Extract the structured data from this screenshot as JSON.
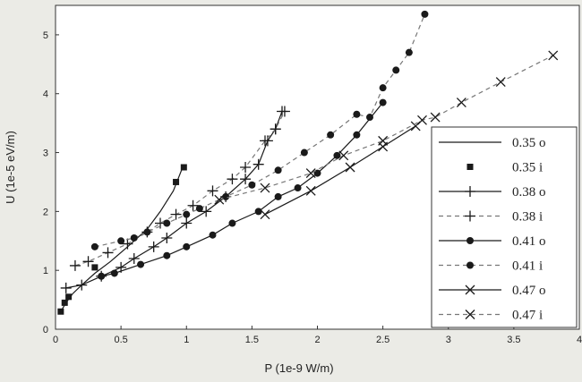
{
  "chart_data": {
    "type": "scatter",
    "title": "",
    "xlabel": "P (1e-9 W/m)",
    "ylabel": "U (1e-5 eV/m)",
    "xlim": [
      0,
      4
    ],
    "ylim": [
      0,
      5.5
    ],
    "x_ticks": [
      "0",
      "0.5",
      "1",
      "1.5",
      "2",
      "2.5",
      "3",
      "3.5",
      "4"
    ],
    "y_ticks": [
      "0",
      "1",
      "2",
      "3",
      "4",
      "5"
    ],
    "grid": false,
    "legend_position": "right",
    "series": [
      {
        "name": "0.35 o",
        "line": "solid",
        "marker": "none",
        "points": [
          [
            0.04,
            0.3
          ],
          [
            0.08,
            0.45
          ],
          [
            0.13,
            0.6
          ],
          [
            0.2,
            0.75
          ],
          [
            0.3,
            0.95
          ],
          [
            0.42,
            1.15
          ],
          [
            0.55,
            1.4
          ],
          [
            0.7,
            1.7
          ],
          [
            0.8,
            2.0
          ],
          [
            0.9,
            2.35
          ],
          [
            0.98,
            2.8
          ]
        ]
      },
      {
        "name": "0.35 i",
        "line": "none",
        "marker": "square",
        "points": [
          [
            0.04,
            0.3
          ],
          [
            0.07,
            0.45
          ],
          [
            0.1,
            0.55
          ],
          [
            0.3,
            1.05
          ],
          [
            0.92,
            2.5
          ],
          [
            0.98,
            2.75
          ]
        ]
      },
      {
        "name": "0.38 o",
        "line": "solid",
        "marker": "plus",
        "points": [
          [
            0.08,
            0.7
          ],
          [
            0.2,
            0.75
          ],
          [
            0.35,
            0.9
          ],
          [
            0.5,
            1.05
          ],
          [
            0.6,
            1.2
          ],
          [
            0.75,
            1.4
          ],
          [
            0.85,
            1.55
          ],
          [
            1.0,
            1.8
          ],
          [
            1.15,
            2.0
          ],
          [
            1.3,
            2.25
          ],
          [
            1.45,
            2.55
          ],
          [
            1.55,
            2.8
          ],
          [
            1.62,
            3.2
          ],
          [
            1.68,
            3.4
          ],
          [
            1.73,
            3.7
          ]
        ]
      },
      {
        "name": "0.38 i",
        "line": "dashed",
        "marker": "plus",
        "points": [
          [
            0.15,
            1.08
          ],
          [
            0.25,
            1.15
          ],
          [
            0.4,
            1.3
          ],
          [
            0.55,
            1.45
          ],
          [
            0.7,
            1.65
          ],
          [
            0.8,
            1.8
          ],
          [
            0.92,
            1.95
          ],
          [
            1.05,
            2.1
          ],
          [
            1.2,
            2.35
          ],
          [
            1.35,
            2.55
          ],
          [
            1.45,
            2.75
          ],
          [
            1.6,
            3.2
          ],
          [
            1.68,
            3.4
          ],
          [
            1.75,
            3.7
          ]
        ]
      },
      {
        "name": "0.41 o",
        "line": "solid",
        "marker": "circle",
        "points": [
          [
            0.35,
            0.9
          ],
          [
            0.45,
            0.95
          ],
          [
            0.65,
            1.1
          ],
          [
            0.85,
            1.25
          ],
          [
            1.0,
            1.4
          ],
          [
            1.2,
            1.6
          ],
          [
            1.35,
            1.8
          ],
          [
            1.55,
            2.0
          ],
          [
            1.7,
            2.25
          ],
          [
            1.85,
            2.4
          ],
          [
            2.0,
            2.65
          ],
          [
            2.15,
            2.95
          ],
          [
            2.3,
            3.3
          ],
          [
            2.5,
            3.85
          ]
        ]
      },
      {
        "name": "0.41 i",
        "line": "dashed",
        "marker": "circle",
        "points": [
          [
            0.3,
            1.4
          ],
          [
            0.5,
            1.5
          ],
          [
            0.6,
            1.55
          ],
          [
            0.7,
            1.65
          ],
          [
            0.85,
            1.8
          ],
          [
            1.0,
            1.95
          ],
          [
            1.1,
            2.05
          ],
          [
            1.3,
            2.25
          ],
          [
            1.5,
            2.45
          ],
          [
            1.7,
            2.7
          ],
          [
            1.9,
            3.0
          ],
          [
            2.1,
            3.3
          ],
          [
            2.3,
            3.65
          ],
          [
            2.4,
            3.6
          ],
          [
            2.5,
            4.1
          ],
          [
            2.6,
            4.4
          ],
          [
            2.7,
            4.7
          ],
          [
            2.82,
            5.35
          ]
        ]
      },
      {
        "name": "0.47 o",
        "line": "solid",
        "marker": "cross",
        "points": [
          [
            1.6,
            1.95
          ],
          [
            1.95,
            2.35
          ],
          [
            2.25,
            2.75
          ],
          [
            2.5,
            3.1
          ],
          [
            2.75,
            3.45
          ]
        ]
      },
      {
        "name": "0.47 i",
        "line": "dashed",
        "marker": "cross",
        "points": [
          [
            1.25,
            2.2
          ],
          [
            1.6,
            2.4
          ],
          [
            1.95,
            2.65
          ],
          [
            2.2,
            2.95
          ],
          [
            2.5,
            3.2
          ],
          [
            2.8,
            3.55
          ],
          [
            2.9,
            3.6
          ],
          [
            3.1,
            3.85
          ],
          [
            3.4,
            4.2
          ],
          [
            3.8,
            4.65
          ]
        ]
      }
    ]
  }
}
